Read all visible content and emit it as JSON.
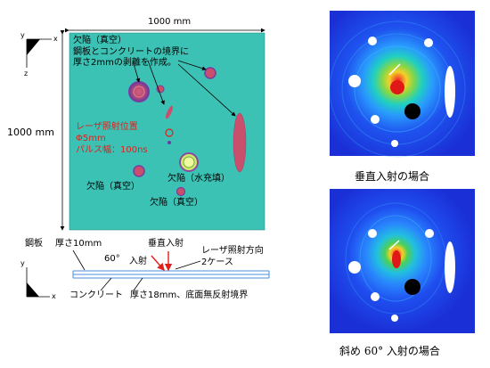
{
  "dimensions": {
    "width_label": "1000 mm",
    "height_label": "1000 mm"
  },
  "axes": {
    "x": "x",
    "y": "y",
    "z": "z"
  },
  "plate_labels": {
    "defect_vacuum_title": "欠陥（真空）",
    "delam_line1": "鋼板とコンクリートの境界に",
    "delam_line2": "厚さ2mmの剥離を作成。",
    "laser_line1": "レーザ照射位置",
    "laser_line2": "Φ5mm",
    "laser_line3": "パルス幅：100ns",
    "defect_water": "欠陥（水充填）",
    "defect_vacuum_left": "欠陥（真空）",
    "defect_vacuum_bottom": "欠陥（真空）"
  },
  "cross_section": {
    "steel_label": "鋼板",
    "steel_thickness": "厚さ10mm",
    "angle": "60°",
    "incident": "入射",
    "vertical_incident": "垂直入射",
    "laser_direction_line1": "レーザ照射方向",
    "laser_direction_line2": "2ケース",
    "concrete_label": "コンクリート",
    "concrete_desc": "厚さ18mm、底面無反射境界"
  },
  "captions": {
    "vertical_case": "垂直入射の場合",
    "oblique_case": "斜め 60°  入射の場合"
  },
  "colors": {
    "plate": "#3cc2b4",
    "defect": "#c8506c",
    "red_text": "#e0201c",
    "sim_background": "#1a2fd6"
  }
}
